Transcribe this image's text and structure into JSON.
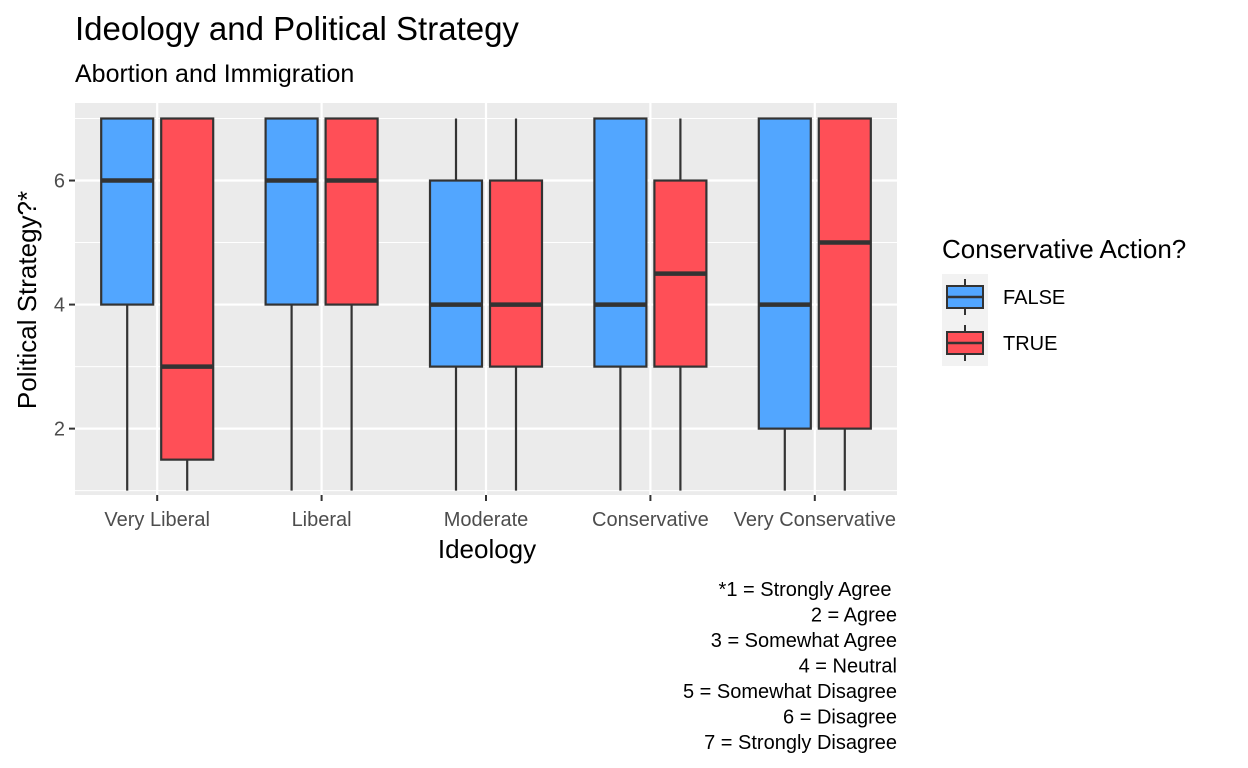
{
  "chart_data": {
    "type": "boxplot",
    "title": "Ideology and Political Strategy",
    "subtitle": "Abortion and Immigration",
    "xlabel": "Ideology",
    "ylabel": "Political Strategy?*",
    "categories": [
      "Very Liberal",
      "Liberal",
      "Moderate",
      "Conservative",
      "Very Conservative"
    ],
    "ylim": [
      0.93,
      7.25
    ],
    "yticks": [
      2,
      4,
      6
    ],
    "grid": true,
    "legend": {
      "title": "Conservative Action?",
      "position": "right"
    },
    "series": [
      {
        "name": "FALSE",
        "color": "#52A6FF",
        "boxes": [
          {
            "min": 1,
            "q1": 4,
            "median": 6,
            "q3": 7,
            "max": 7
          },
          {
            "min": 1,
            "q1": 4,
            "median": 6,
            "q3": 7,
            "max": 7
          },
          {
            "min": 1,
            "q1": 3,
            "median": 4,
            "q3": 6,
            "max": 7
          },
          {
            "min": 1,
            "q1": 3,
            "median": 4,
            "q3": 7,
            "max": 7
          },
          {
            "min": 1,
            "q1": 2,
            "median": 4,
            "q3": 7,
            "max": 7
          }
        ]
      },
      {
        "name": "TRUE",
        "color": "#FF4F57",
        "boxes": [
          {
            "min": 1,
            "q1": 1.5,
            "median": 3,
            "q3": 7,
            "max": 7
          },
          {
            "min": 1,
            "q1": 4,
            "median": 6,
            "q3": 7,
            "max": 7
          },
          {
            "min": 1,
            "q1": 3,
            "median": 4,
            "q3": 6,
            "max": 7
          },
          {
            "min": 1,
            "q1": 3,
            "median": 4.5,
            "q3": 6,
            "max": 7
          },
          {
            "min": 1,
            "q1": 2,
            "median": 5,
            "q3": 7,
            "max": 7
          }
        ]
      }
    ],
    "caption": [
      "*1 = Strongly Agree ",
      "2 = Agree",
      "3 = Somewhat Agree",
      "4 = Neutral",
      "5 = Somewhat Disagree",
      "6 = Disagree",
      "7 = Strongly Disagree"
    ]
  }
}
